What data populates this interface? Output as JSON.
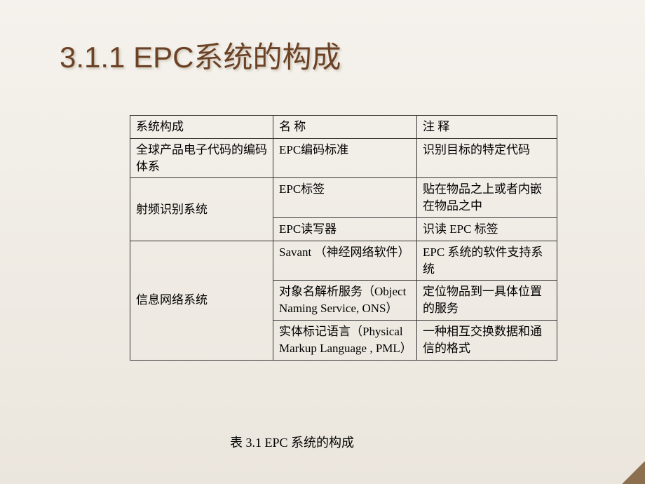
{
  "title": "3.1.1 EPC系统的构成",
  "table": {
    "headers": {
      "col1": "系统构成",
      "col2": "名 称",
      "col3": "注 释"
    },
    "rows": [
      {
        "col1": "全球产品电子代码的编码体系",
        "col2": "EPC编码标准",
        "col3": "识别目标的特定代码"
      },
      {
        "col1": "射频识别系统",
        "col1_rowspan": 2,
        "col2": "EPC标签",
        "col3": "贴在物品之上或者内嵌在物品之中"
      },
      {
        "col2": "EPC读写器",
        "col3": "识读 EPC 标签"
      },
      {
        "col1": "信息网络系统",
        "col1_rowspan": 3,
        "col2": "Savant  （神经网络软件）",
        "col3": "EPC 系统的软件支持系统"
      },
      {
        "col2": "对象名解析服务（Object Naming Service, ONS）",
        "col3": "定位物品到一具体位置的服务"
      },
      {
        "col2": "实体标记语言（Physical Markup Language , PML）",
        "col3": "一种相互交换数据和通信的格式"
      }
    ]
  },
  "caption": "表  3.1 EPC 系统的构成",
  "colors": {
    "title_color": "#6b4226",
    "background_top": "#f5f2ed",
    "background_bottom": "#ebe6dd",
    "border_color": "#333333",
    "text_color": "#000000"
  },
  "typography": {
    "title_fontsize": 42,
    "cell_fontsize": 17,
    "caption_fontsize": 18
  }
}
